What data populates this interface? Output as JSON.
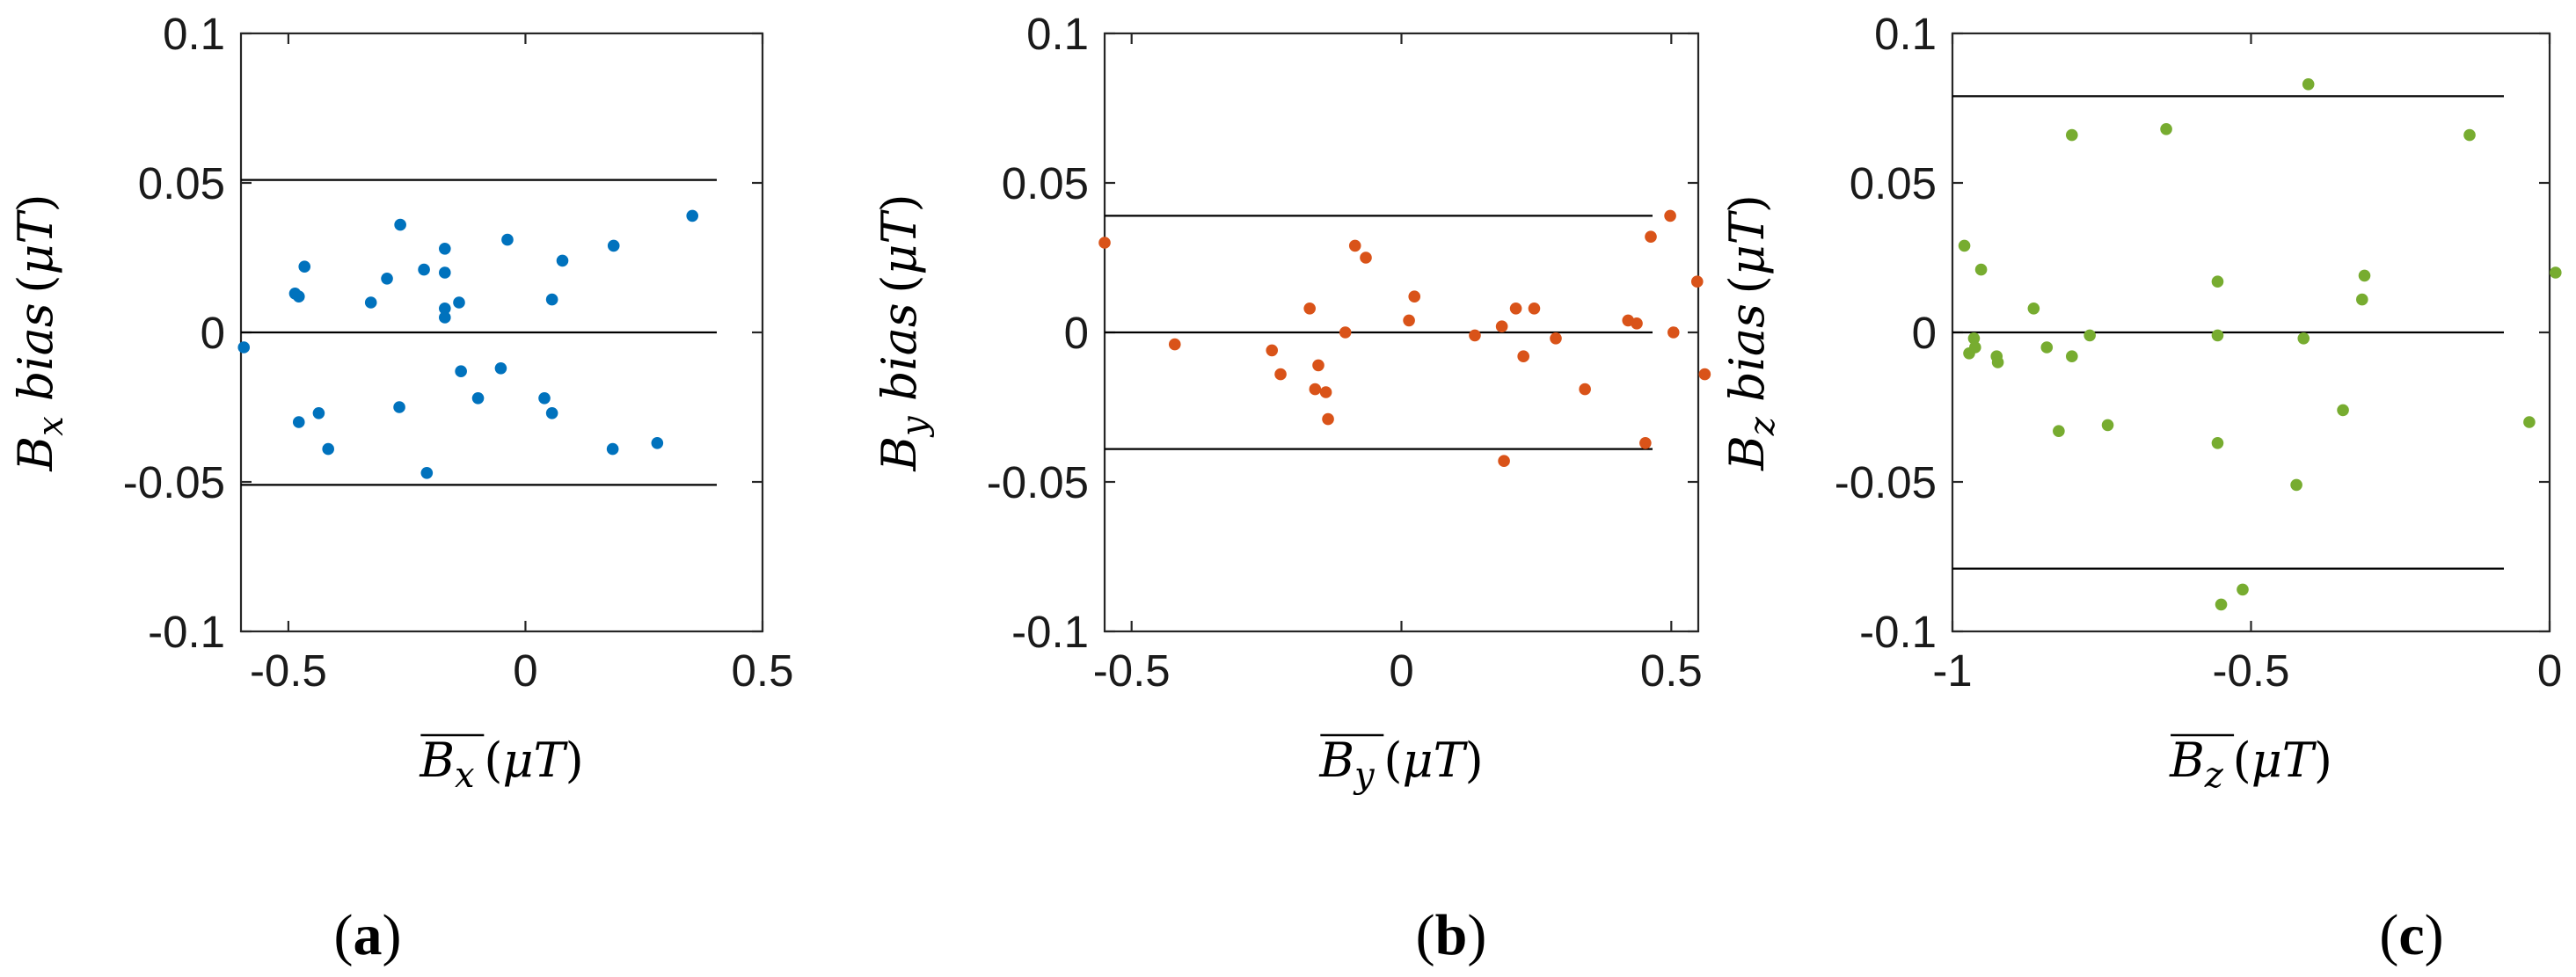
{
  "chart_data": [
    {
      "type": "scatter",
      "panel_label": "a",
      "color": "#0072BD",
      "xlim": [
        -0.6,
        0.5
      ],
      "ylim": [
        -0.1,
        0.1
      ],
      "x_ticks": [
        -0.5,
        0,
        0.5
      ],
      "x_tick_labels": [
        "-0.5",
        "0",
        "0.5"
      ],
      "y_ticks": [
        0.1,
        0.05,
        0,
        -0.05,
        -0.1
      ],
      "y_tick_labels": [
        "0.1",
        "0.05",
        "0",
        "-0.05",
        "-0.1"
      ],
      "xlabel": {
        "symbol": "B",
        "subscript": "x",
        "unit": "μT"
      },
      "ylabel": {
        "symbol": "B",
        "subscript": "x",
        "word": "bias",
        "unit": "μT"
      },
      "reference_lines": [
        0.051,
        0,
        -0.051
      ],
      "points": [
        [
          -0.594,
          -0.005
        ],
        [
          -0.486,
          0.013
        ],
        [
          -0.478,
          0.012
        ],
        [
          -0.466,
          0.022
        ],
        [
          -0.478,
          -0.03
        ],
        [
          -0.436,
          -0.027
        ],
        [
          -0.416,
          -0.039
        ],
        [
          -0.326,
          0.01
        ],
        [
          -0.292,
          0.018
        ],
        [
          -0.264,
          0.036
        ],
        [
          -0.266,
          -0.025
        ],
        [
          -0.214,
          0.021
        ],
        [
          -0.208,
          -0.047
        ],
        [
          -0.17,
          0.028
        ],
        [
          -0.17,
          0.02
        ],
        [
          -0.17,
          0.008
        ],
        [
          -0.17,
          0.005
        ],
        [
          -0.14,
          0.01
        ],
        [
          -0.136,
          -0.013
        ],
        [
          -0.1,
          -0.022
        ],
        [
          -0.052,
          -0.012
        ],
        [
          -0.038,
          0.031
        ],
        [
          0.04,
          -0.022
        ],
        [
          0.056,
          0.011
        ],
        [
          0.056,
          -0.027
        ],
        [
          0.078,
          0.024
        ],
        [
          0.186,
          0.029
        ],
        [
          0.184,
          -0.039
        ],
        [
          0.278,
          -0.037
        ],
        [
          0.352,
          0.039
        ]
      ]
    },
    {
      "type": "scatter",
      "panel_label": "b",
      "color": "#D95319",
      "xlim": [
        -0.55,
        0.55
      ],
      "ylim": [
        -0.1,
        0.1
      ],
      "x_ticks": [
        -0.5,
        0,
        0.5
      ],
      "x_tick_labels": [
        "-0.5",
        "0",
        "0.5"
      ],
      "y_ticks": [
        0.1,
        0.05,
        0,
        -0.05,
        -0.1
      ],
      "y_tick_labels": [
        "0.1",
        "0.05",
        "0",
        "-0.05",
        "-0.1"
      ],
      "xlabel": {
        "symbol": "B",
        "subscript": "y",
        "unit": "μT"
      },
      "ylabel": {
        "symbol": "B",
        "subscript": "y",
        "word": "bias",
        "unit": "μT"
      },
      "reference_lines": [
        0.039,
        0,
        -0.039
      ],
      "points": [
        [
          -0.55,
          0.03
        ],
        [
          -0.42,
          -0.004
        ],
        [
          -0.24,
          -0.006
        ],
        [
          -0.224,
          -0.014
        ],
        [
          -0.17,
          0.008
        ],
        [
          -0.16,
          -0.019
        ],
        [
          -0.154,
          -0.011
        ],
        [
          -0.14,
          -0.02
        ],
        [
          -0.136,
          -0.029
        ],
        [
          -0.104,
          0
        ],
        [
          -0.086,
          0.029
        ],
        [
          -0.066,
          0.025
        ],
        [
          0.014,
          0.004
        ],
        [
          0.024,
          0.012
        ],
        [
          0.136,
          -0.001
        ],
        [
          0.186,
          0.002
        ],
        [
          0.19,
          -0.043
        ],
        [
          0.212,
          0.008
        ],
        [
          0.226,
          -0.008
        ],
        [
          0.246,
          0.008
        ],
        [
          0.286,
          -0.002
        ],
        [
          0.34,
          -0.019
        ],
        [
          0.42,
          0.004
        ],
        [
          0.436,
          0.003
        ],
        [
          0.452,
          -0.037
        ],
        [
          0.462,
          0.032
        ],
        [
          0.498,
          0.039
        ],
        [
          0.504,
          0
        ],
        [
          0.548,
          0.017
        ],
        [
          0.562,
          -0.014
        ]
      ]
    },
    {
      "type": "scatter",
      "panel_label": "c",
      "color": "#77AC30",
      "xlim": [
        -1,
        0
      ],
      "ylim": [
        -0.1,
        0.1
      ],
      "x_ticks": [
        -1,
        -0.5,
        0
      ],
      "x_tick_labels": [
        "-1",
        "-0.5",
        "0"
      ],
      "y_ticks": [
        0.1,
        0.05,
        0,
        -0.05,
        -0.1
      ],
      "y_tick_labels": [
        "0.1",
        "0.05",
        "0",
        "-0.05",
        "-0.1"
      ],
      "xlabel": {
        "symbol": "B",
        "subscript": "z",
        "unit": "μT"
      },
      "ylabel": {
        "symbol": "B",
        "subscript": "z",
        "word": "bias",
        "unit": "μT"
      },
      "reference_lines": [
        0.079,
        0,
        -0.079
      ],
      "points": [
        [
          -0.98,
          0.029
        ],
        [
          -0.972,
          -0.007
        ],
        [
          -0.964,
          -0.002
        ],
        [
          -0.962,
          -0.005
        ],
        [
          -0.952,
          0.021
        ],
        [
          -0.926,
          -0.008
        ],
        [
          -0.924,
          -0.01
        ],
        [
          -0.864,
          0.008
        ],
        [
          -0.842,
          -0.005
        ],
        [
          -0.822,
          -0.033
        ],
        [
          -0.8,
          -0.008
        ],
        [
          -0.8,
          0.066
        ],
        [
          -0.77,
          -0.001
        ],
        [
          -0.74,
          -0.031
        ],
        [
          -0.642,
          0.068
        ],
        [
          -0.556,
          0.017
        ],
        [
          -0.556,
          -0.001
        ],
        [
          -0.556,
          -0.037
        ],
        [
          -0.55,
          -0.091
        ],
        [
          -0.514,
          -0.086
        ],
        [
          -0.424,
          -0.051
        ],
        [
          -0.412,
          -0.002
        ],
        [
          -0.404,
          0.083
        ],
        [
          -0.346,
          -0.026
        ],
        [
          -0.314,
          0.011
        ],
        [
          -0.31,
          0.019
        ],
        [
          -0.134,
          0.066
        ],
        [
          -0.034,
          -0.03
        ],
        [
          0.01,
          0.02
        ]
      ]
    }
  ]
}
